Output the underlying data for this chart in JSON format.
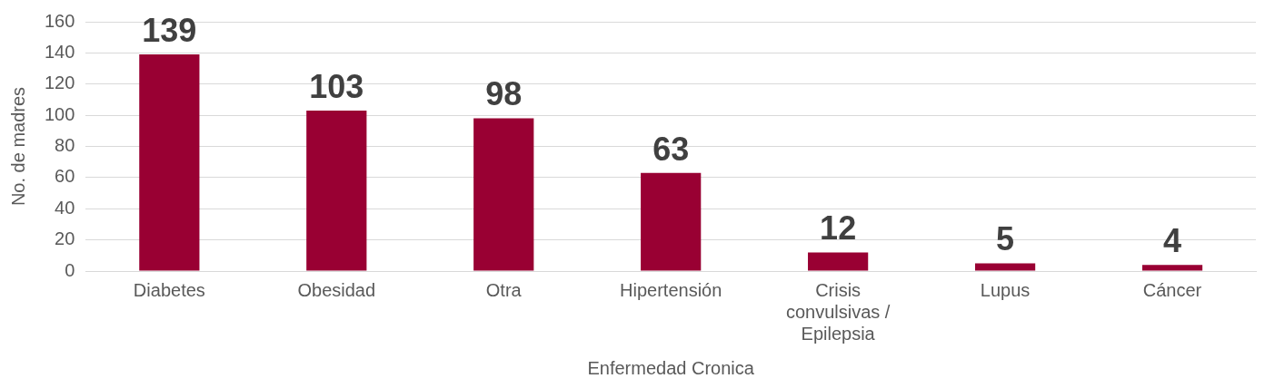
{
  "chart_data": {
    "type": "bar",
    "xlabel": "Enfermedad Cronica",
    "ylabel": "No. de madres",
    "categories": [
      "Diabetes",
      "Obesidad",
      "Otra",
      "Hipertensión",
      "Crisis convulsivas / Epilepsia",
      "Lupus",
      "Cáncer"
    ],
    "values": [
      139,
      103,
      98,
      63,
      12,
      5,
      4
    ],
    "color": "#990033",
    "ylim": [
      0,
      160
    ],
    "yticks": [
      0,
      20,
      40,
      60,
      80,
      100,
      120,
      140,
      160
    ],
    "grid": "y",
    "data_labels": true
  }
}
